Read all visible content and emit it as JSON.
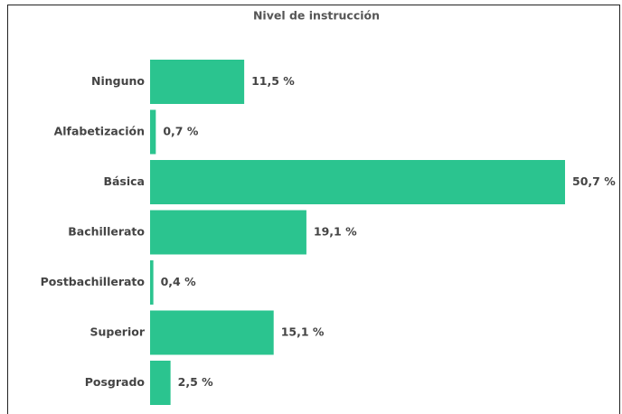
{
  "chart_data": {
    "type": "hbar",
    "title": "Nivel de instrucción",
    "categories": [
      "Ninguno",
      "Alfabetización",
      "Básica",
      "Bachillerato",
      "Postbachillerato",
      "Superior",
      "Posgrado"
    ],
    "values": [
      11.5,
      0.7,
      50.7,
      19.1,
      0.4,
      15.1,
      2.5
    ],
    "value_labels": [
      "11,5 %",
      "0,7 %",
      "50,7 %",
      "19,1 %",
      "0,4 %",
      "15,1 %",
      "2,5 %"
    ],
    "color": "#2bc48f"
  }
}
